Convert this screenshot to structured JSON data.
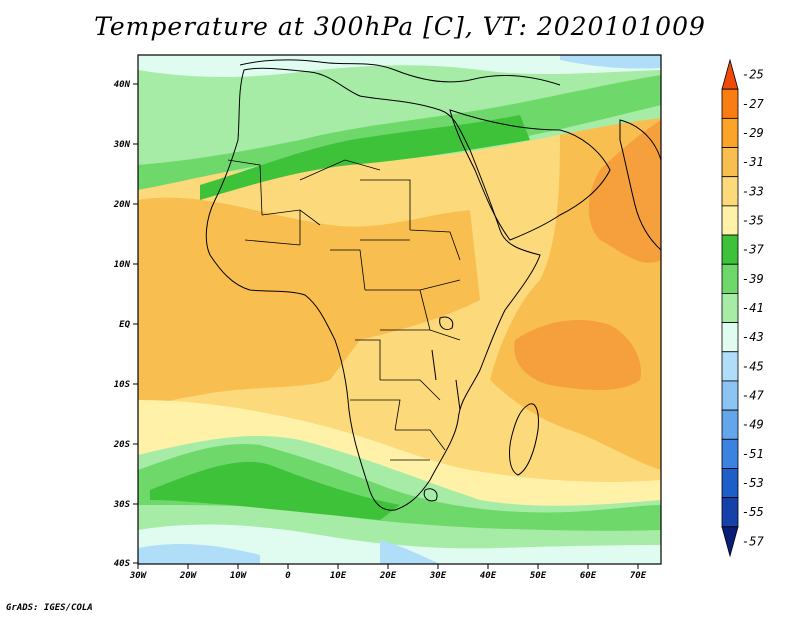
{
  "title": "Temperature at 300hPa [C], VT: 2020101009",
  "credit": "GrADS: IGES/COLA",
  "map": {
    "lon_ticks": [
      "30W",
      "20W",
      "10W",
      "0",
      "10E",
      "20E",
      "30E",
      "40E",
      "50E",
      "60E",
      "70E"
    ],
    "lat_ticks": [
      "40N",
      "30N",
      "20N",
      "10N",
      "EQ",
      "10S",
      "20S",
      "30S",
      "40S"
    ]
  },
  "colorbar": {
    "labels": [
      "-25",
      "-27",
      "-29",
      "-31",
      "-33",
      "-35",
      "-37",
      "-39",
      "-41",
      "-43",
      "-45",
      "-47",
      "-49",
      "-51",
      "-53",
      "-55",
      "-57"
    ],
    "colors": [
      "#f04a0a",
      "#fa7d14",
      "#fca32a",
      "#f8be50",
      "#fcd97a",
      "#fff2a8",
      "#3ec23a",
      "#6ed86a",
      "#a6eca6",
      "#e0fcf0",
      "#b0def8",
      "#8cc4f4",
      "#64a6ec",
      "#3c82e0",
      "#1e5ec8",
      "#1442a8",
      "#0a1e78"
    ]
  },
  "palette": {
    "orange_dark": "#f5a03c",
    "orange": "#f8be50",
    "yellow": "#fcd97a",
    "pale_yellow": "#fff2a8",
    "green_dark": "#3ec23a",
    "green": "#6ed86a",
    "green_light": "#a6eca6",
    "cyan_pale": "#e0fcf0",
    "blue_light": "#b0def8"
  }
}
